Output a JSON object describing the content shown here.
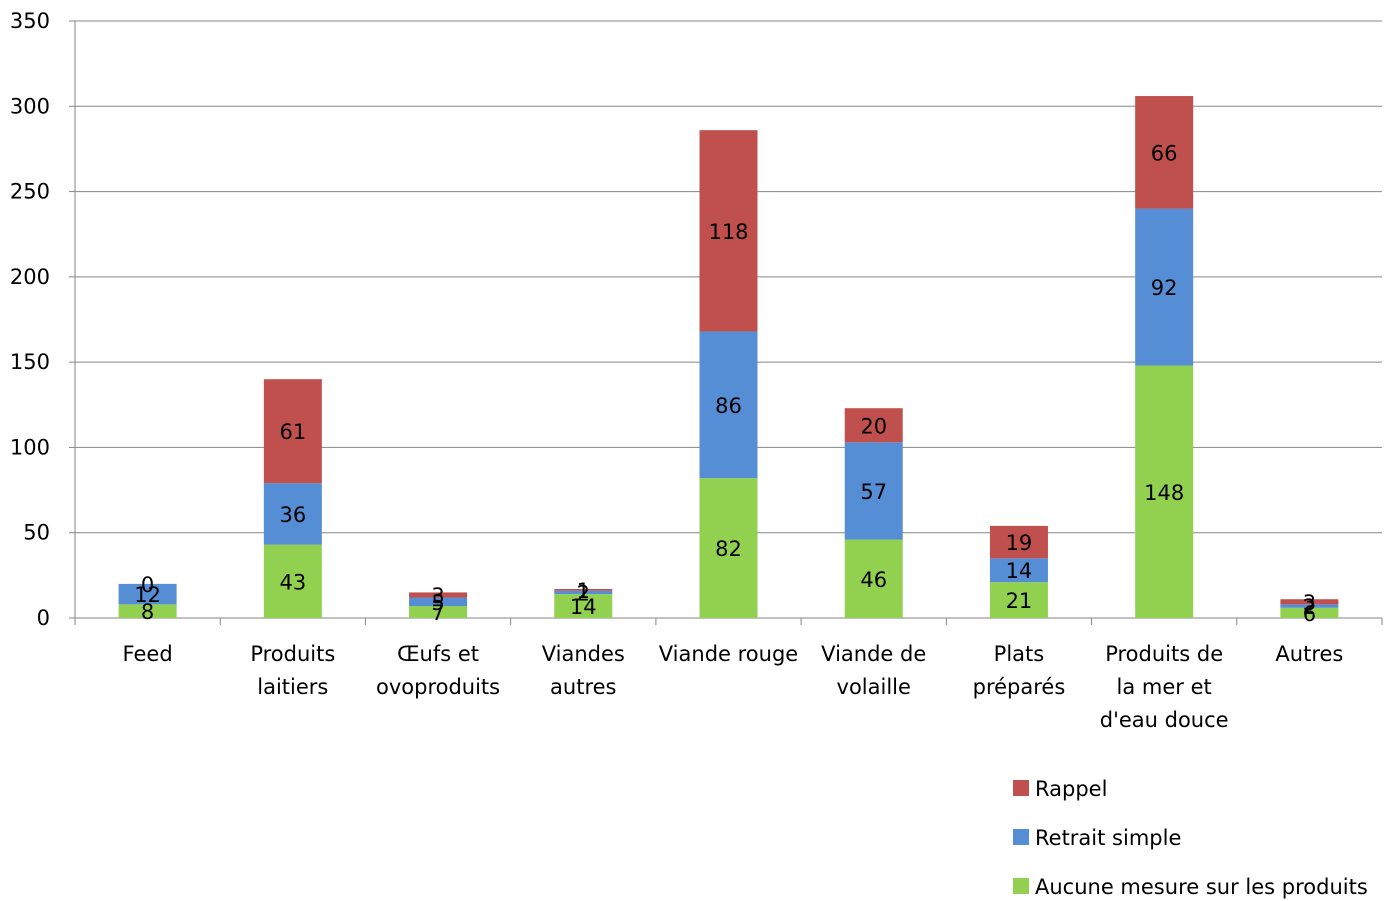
{
  "chart_data": {
    "type": "bar",
    "stacked": true,
    "categories": [
      [
        "Feed"
      ],
      [
        "Produits",
        "laitiers"
      ],
      [
        "Œufs et",
        "ovoproduits"
      ],
      [
        "Viandes",
        "autres"
      ],
      [
        "Viande rouge"
      ],
      [
        "Viande de",
        "volaille"
      ],
      [
        "Plats",
        "préparés"
      ],
      [
        "Produits de",
        "la mer et",
        "d'eau douce"
      ],
      [
        "Autres"
      ]
    ],
    "series": [
      {
        "name": "Aucune mesure sur les produits",
        "color": "#92d050",
        "values": [
          8,
          43,
          7,
          14,
          82,
          46,
          21,
          148,
          6
        ]
      },
      {
        "name": "Retrait simple",
        "color": "#558ed5",
        "values": [
          12,
          36,
          5,
          2,
          86,
          57,
          14,
          92,
          2
        ]
      },
      {
        "name": "Rappel",
        "color": "#c0504d",
        "values": [
          0,
          61,
          3,
          1,
          118,
          20,
          19,
          66,
          3
        ]
      }
    ],
    "ylim": [
      0,
      350
    ],
    "yticks": [
      0,
      50,
      100,
      150,
      200,
      250,
      300,
      350
    ],
    "grid": "horizontal",
    "legend": "bottom-right",
    "data_labels": true
  }
}
